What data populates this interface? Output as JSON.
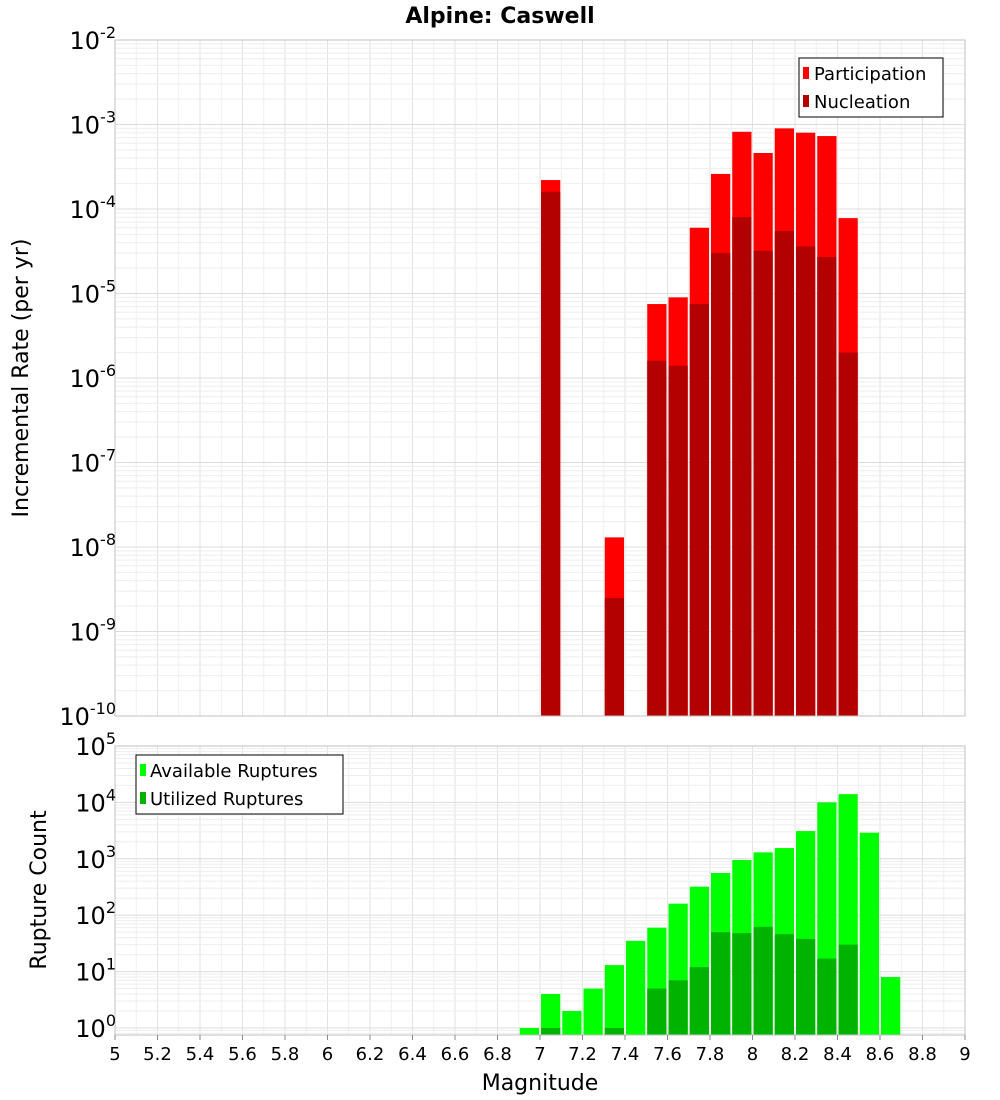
{
  "chart_data": [
    {
      "type": "bar",
      "title": "Alpine: Caswell",
      "xlabel": "",
      "ylabel": "Incremental Rate (per yr)",
      "y_scale": "log",
      "ylim": [
        1e-10,
        0.01
      ],
      "xlim": [
        5,
        9
      ],
      "bar_width": 0.1,
      "legend_position": "top-right",
      "y_ticks": [
        {
          "base": "10",
          "exp": "-10"
        },
        {
          "base": "10",
          "exp": "-9"
        },
        {
          "base": "10",
          "exp": "-8"
        },
        {
          "base": "10",
          "exp": "-7"
        },
        {
          "base": "10",
          "exp": "-6"
        },
        {
          "base": "10",
          "exp": "-5"
        },
        {
          "base": "10",
          "exp": "-4"
        },
        {
          "base": "10",
          "exp": "-3"
        },
        {
          "base": "10",
          "exp": "-2"
        }
      ],
      "series": [
        {
          "name": "Participation",
          "color": "#ff0000",
          "x": [
            7.05,
            7.35,
            7.55,
            7.65,
            7.75,
            7.85,
            7.95,
            8.05,
            8.15,
            8.25,
            8.35,
            8.45
          ],
          "values": [
            0.00022,
            1.3e-08,
            7.5e-06,
            9e-06,
            6e-05,
            0.00026,
            0.00082,
            0.00046,
            0.0009,
            0.0008,
            0.00073,
            7.8e-05
          ]
        },
        {
          "name": "Nucleation",
          "color": "#b30000",
          "x": [
            7.05,
            7.35,
            7.55,
            7.65,
            7.75,
            7.85,
            7.95,
            8.05,
            8.15,
            8.25,
            8.35,
            8.45
          ],
          "values": [
            0.00016,
            2.5e-09,
            1.6e-06,
            1.4e-06,
            7.5e-06,
            3e-05,
            8e-05,
            3.2e-05,
            5.5e-05,
            3.6e-05,
            2.7e-05,
            2e-06
          ]
        }
      ]
    },
    {
      "type": "bar",
      "title": "",
      "xlabel": "Magnitude",
      "ylabel": "Rupture Count",
      "y_scale": "log",
      "ylim": [
        0.75,
        100000.0
      ],
      "xlim": [
        5,
        9
      ],
      "bar_width": 0.1,
      "legend_position": "top-left",
      "x_tick_labels": [
        "5",
        "5.2",
        "5.4",
        "5.6",
        "5.8",
        "6",
        "6.2",
        "6.4",
        "6.6",
        "6.8",
        "7",
        "7.2",
        "7.4",
        "7.6",
        "7.8",
        "8",
        "8.2",
        "8.4",
        "8.6",
        "8.8",
        "9"
      ],
      "y_ticks": [
        {
          "base": "10",
          "exp": "0"
        },
        {
          "base": "10",
          "exp": "1"
        },
        {
          "base": "10",
          "exp": "2"
        },
        {
          "base": "10",
          "exp": "3"
        },
        {
          "base": "10",
          "exp": "4"
        },
        {
          "base": "10",
          "exp": "5"
        }
      ],
      "series": [
        {
          "name": "Available Ruptures",
          "color": "#00ff00",
          "x": [
            6.95,
            7.05,
            7.15,
            7.25,
            7.35,
            7.45,
            7.55,
            7.65,
            7.75,
            7.85,
            7.95,
            8.05,
            8.15,
            8.25,
            8.35,
            8.45,
            8.55,
            8.65
          ],
          "values": [
            1,
            4,
            2,
            5,
            13,
            35,
            60,
            160,
            320,
            560,
            950,
            1300,
            1550,
            3100,
            10000,
            14000,
            2900,
            8
          ]
        },
        {
          "name": "Utilized Ruptures",
          "color": "#00b300",
          "x": [
            7.05,
            7.35,
            7.55,
            7.65,
            7.75,
            7.85,
            7.95,
            8.05,
            8.15,
            8.25,
            8.35,
            8.45
          ],
          "values": [
            1,
            1,
            5,
            7,
            12,
            50,
            48,
            62,
            46,
            38,
            17,
            30
          ]
        }
      ]
    }
  ]
}
